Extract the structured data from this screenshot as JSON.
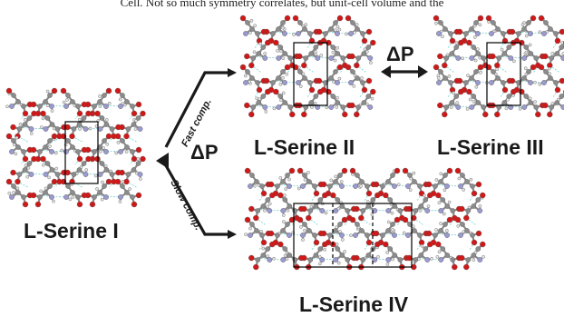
{
  "header_text": "Cell. Not so much symmetry correlates, but unit-cell volume and the",
  "structures": [
    {
      "id": "I",
      "label": "L-Serine I"
    },
    {
      "id": "II",
      "label": "L-Serine II"
    },
    {
      "id": "III",
      "label": "L-Serine III"
    },
    {
      "id": "IV",
      "label": "L-Serine IV"
    }
  ],
  "pressure_symbol": "ΔP",
  "routes": {
    "fast": "Fast comp.",
    "slow": "Slow comp."
  },
  "colors": {
    "carbon": "#8c8c8c",
    "oxygen": "#d01818",
    "nitrogen": "#9a9ad0",
    "hydrogen": "#e6e6e6",
    "hbond": "#6fd0d0",
    "arrow": "#1a1a1a"
  }
}
